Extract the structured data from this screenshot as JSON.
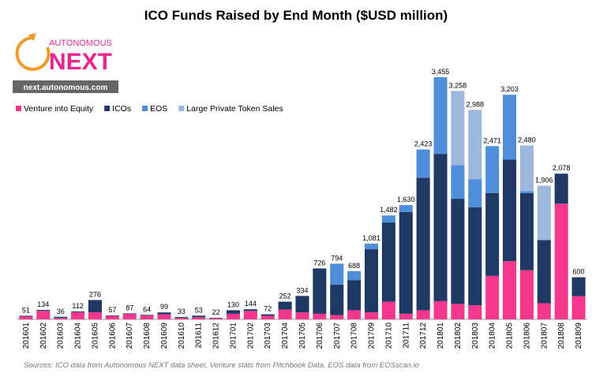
{
  "chart_data": {
    "type": "stacked-bar",
    "title": "ICO Funds Raised by End Month ($USD million)",
    "logo": {
      "top": "AUTONOMOUS",
      "main": "NEXT",
      "url": "next.autonomous.com"
    },
    "source": "Sources: ICO data from Autonomous NEXT data sheet, Venture stats from Pitchbook Data, EOS data from EOSscan.io",
    "categories": [
      "201601",
      "201602",
      "201603",
      "201604",
      "201605",
      "201606",
      "201607",
      "201608",
      "201609",
      "201610",
      "201611",
      "201612",
      "201701",
      "201702",
      "201703",
      "201704",
      "201705",
      "201706",
      "201707",
      "201708",
      "201709",
      "201710",
      "201711",
      "201712",
      "201801",
      "201802",
      "201803",
      "201804",
      "201805",
      "201806",
      "201807",
      "201808",
      "201809"
    ],
    "series": [
      {
        "name": "Venture into Equity",
        "color": "#f5388e",
        "values": [
          40,
          120,
          20,
          100,
          100,
          50,
          80,
          55,
          70,
          20,
          30,
          15,
          80,
          120,
          50,
          140,
          100,
          80,
          60,
          130,
          100,
          250,
          80,
          130,
          260,
          220,
          200,
          620,
          830,
          700,
          230,
          1650,
          330
        ]
      },
      {
        "name": "ICOs",
        "color": "#1f3864",
        "values": [
          11,
          14,
          16,
          12,
          176,
          7,
          7,
          9,
          29,
          13,
          23,
          7,
          50,
          24,
          22,
          112,
          234,
          646,
          434,
          430,
          900,
          1132,
          1450,
          1890,
          2100,
          1500,
          1400,
          1180,
          1450,
          1100,
          900,
          428,
          270
        ]
      },
      {
        "name": "EOS",
        "color": "#4f8ed8",
        "values": [
          0,
          0,
          0,
          0,
          0,
          0,
          0,
          0,
          0,
          0,
          0,
          0,
          0,
          0,
          0,
          0,
          0,
          0,
          300,
          128,
          81,
          100,
          100,
          403,
          1095,
          480,
          400,
          671,
          923,
          30,
          0,
          0,
          0
        ]
      },
      {
        "name": "Large Private Token Sales",
        "color": "#9db7dd",
        "values": [
          0,
          0,
          0,
          0,
          0,
          0,
          0,
          0,
          0,
          0,
          0,
          0,
          0,
          0,
          0,
          0,
          0,
          0,
          0,
          0,
          0,
          0,
          0,
          0,
          0,
          1058,
          988,
          0,
          0,
          650,
          776,
          0,
          0
        ]
      }
    ],
    "totals": [
      51,
      134,
      36,
      112,
      276,
      57,
      87,
      64,
      99,
      33,
      53,
      22,
      130,
      144,
      72,
      252,
      334,
      726,
      794,
      688,
      1081,
      1482,
      1630,
      2423,
      3455,
      3258,
      2988,
      2471,
      3203,
      2480,
      1906,
      2078,
      600
    ],
    "totals_labels": [
      "51",
      "134",
      "36",
      "112",
      "276",
      "57",
      "87",
      "64",
      "99",
      "33",
      "53",
      "22",
      "130",
      "144",
      "72",
      "252",
      "334",
      "726",
      "794",
      "688",
      "1,081",
      "1,482",
      "1,630",
      "2,423",
      "3,455",
      "3,258",
      "2,988",
      "2,471",
      "3,203",
      "2,480",
      "1,906",
      "2,078",
      "600"
    ],
    "ylim": [
      0,
      3700
    ]
  }
}
